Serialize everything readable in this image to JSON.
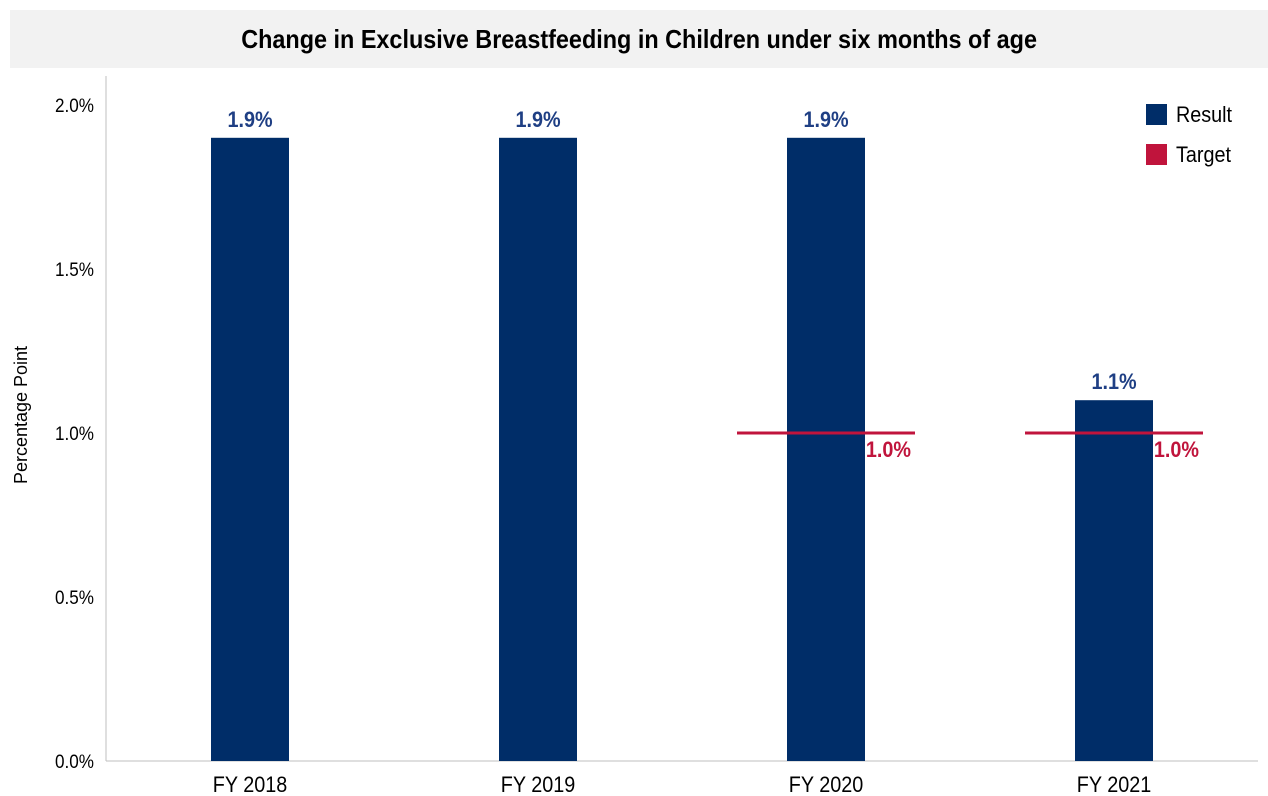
{
  "chart_data": {
    "type": "bar",
    "title": "Change in Exclusive Breastfeeding in Children under six months of age",
    "xlabel": "",
    "ylabel": "Percentage Point",
    "categories": [
      "FY 2018",
      "FY 2019",
      "FY 2020",
      "FY 2021"
    ],
    "ylim": [
      0,
      2.0
    ],
    "yticks": [
      "0.0%",
      "0.5%",
      "1.0%",
      "1.5%",
      "2.0%"
    ],
    "series": [
      {
        "name": "Result",
        "type": "bar",
        "color": "#002d68",
        "values": [
          1.9,
          1.9,
          1.9,
          1.1
        ],
        "labels": [
          "1.9%",
          "1.9%",
          "1.9%",
          "1.1%"
        ]
      },
      {
        "name": "Target",
        "type": "target-line",
        "color": "#c0143c",
        "values": [
          null,
          null,
          1.0,
          1.0
        ],
        "labels": [
          "",
          "",
          "1.0%",
          "1.0%"
        ]
      }
    ],
    "legend": {
      "position": "top-right"
    },
    "grid": false
  }
}
